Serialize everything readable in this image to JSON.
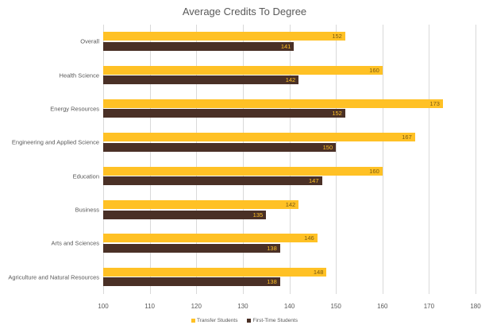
{
  "chart_data": {
    "type": "bar",
    "orientation": "horizontal",
    "title": "Average Credits To Degree",
    "xlabel": "",
    "ylabel": "",
    "xlim": [
      100,
      180
    ],
    "xticks": [
      100,
      110,
      120,
      130,
      140,
      150,
      160,
      170,
      180
    ],
    "grid": true,
    "legend_position": "bottom",
    "categories": [
      "Overall",
      "Health Science",
      "Energy Resources",
      "Engineering and Applied Science",
      "Education",
      "Business",
      "Arts and Sciences",
      "Agriculture and Natural Resources"
    ],
    "series": [
      {
        "name": "Transfer Students",
        "color": "#ffc125",
        "values": [
          152,
          160,
          173,
          167,
          160,
          142,
          146,
          148
        ]
      },
      {
        "name": "First-Time Students",
        "color": "#4a3026",
        "values": [
          141,
          142,
          152,
          150,
          147,
          135,
          138,
          138
        ]
      }
    ]
  }
}
